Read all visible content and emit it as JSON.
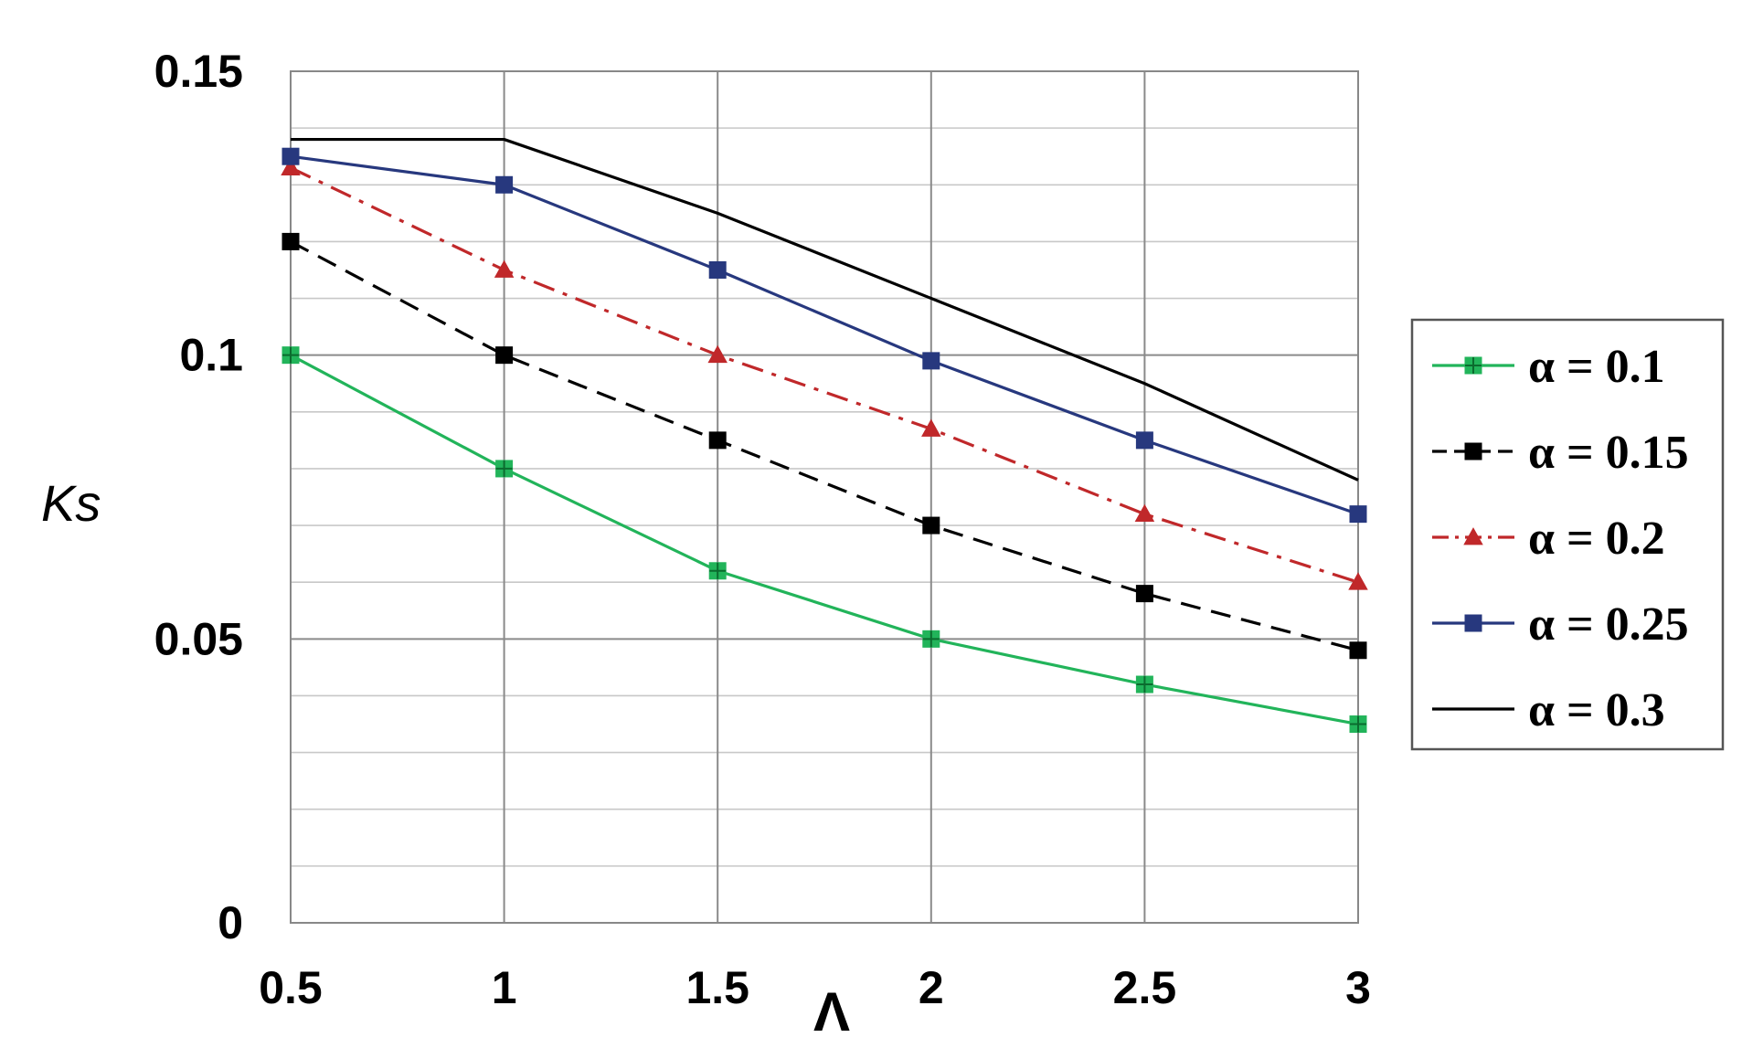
{
  "chart_data": {
    "type": "line",
    "title": "",
    "xlabel": "Λ",
    "ylabel": "Ks",
    "x": [
      0.5,
      1,
      1.5,
      2,
      2.5,
      3
    ],
    "xticks": [
      "0.5",
      "1",
      "1.5",
      "2",
      "2.5",
      "3"
    ],
    "yticks": [
      "0",
      "0.05",
      "0.1",
      "0.15"
    ],
    "xlim": [
      0.5,
      3
    ],
    "ylim": [
      0,
      0.15
    ],
    "grid": true,
    "legend_position": "right",
    "series": [
      {
        "name": "α = 0.1",
        "values": [
          0.1,
          0.08,
          0.062,
          0.05,
          0.042,
          0.035
        ],
        "color": "#22b45a",
        "dash": "solid",
        "marker": "square-plus"
      },
      {
        "name": "α = 0.15",
        "values": [
          0.12,
          0.1,
          0.085,
          0.07,
          0.058,
          0.048
        ],
        "color": "#000000",
        "dash": "dashed",
        "marker": "square"
      },
      {
        "name": "α = 0.2",
        "values": [
          0.133,
          0.115,
          0.1,
          0.087,
          0.072,
          0.06
        ],
        "color": "#c0282a",
        "dash": "dash-dot",
        "marker": "triangle"
      },
      {
        "name": "α = 0.25",
        "values": [
          0.135,
          0.13,
          0.115,
          0.099,
          0.085,
          0.072
        ],
        "color": "#27387e",
        "dash": "solid",
        "marker": "square"
      },
      {
        "name": "α = 0.3",
        "values": [
          0.138,
          0.138,
          0.125,
          0.11,
          0.095,
          0.078
        ],
        "color": "#000000",
        "dash": "solid",
        "marker": "none"
      }
    ]
  }
}
